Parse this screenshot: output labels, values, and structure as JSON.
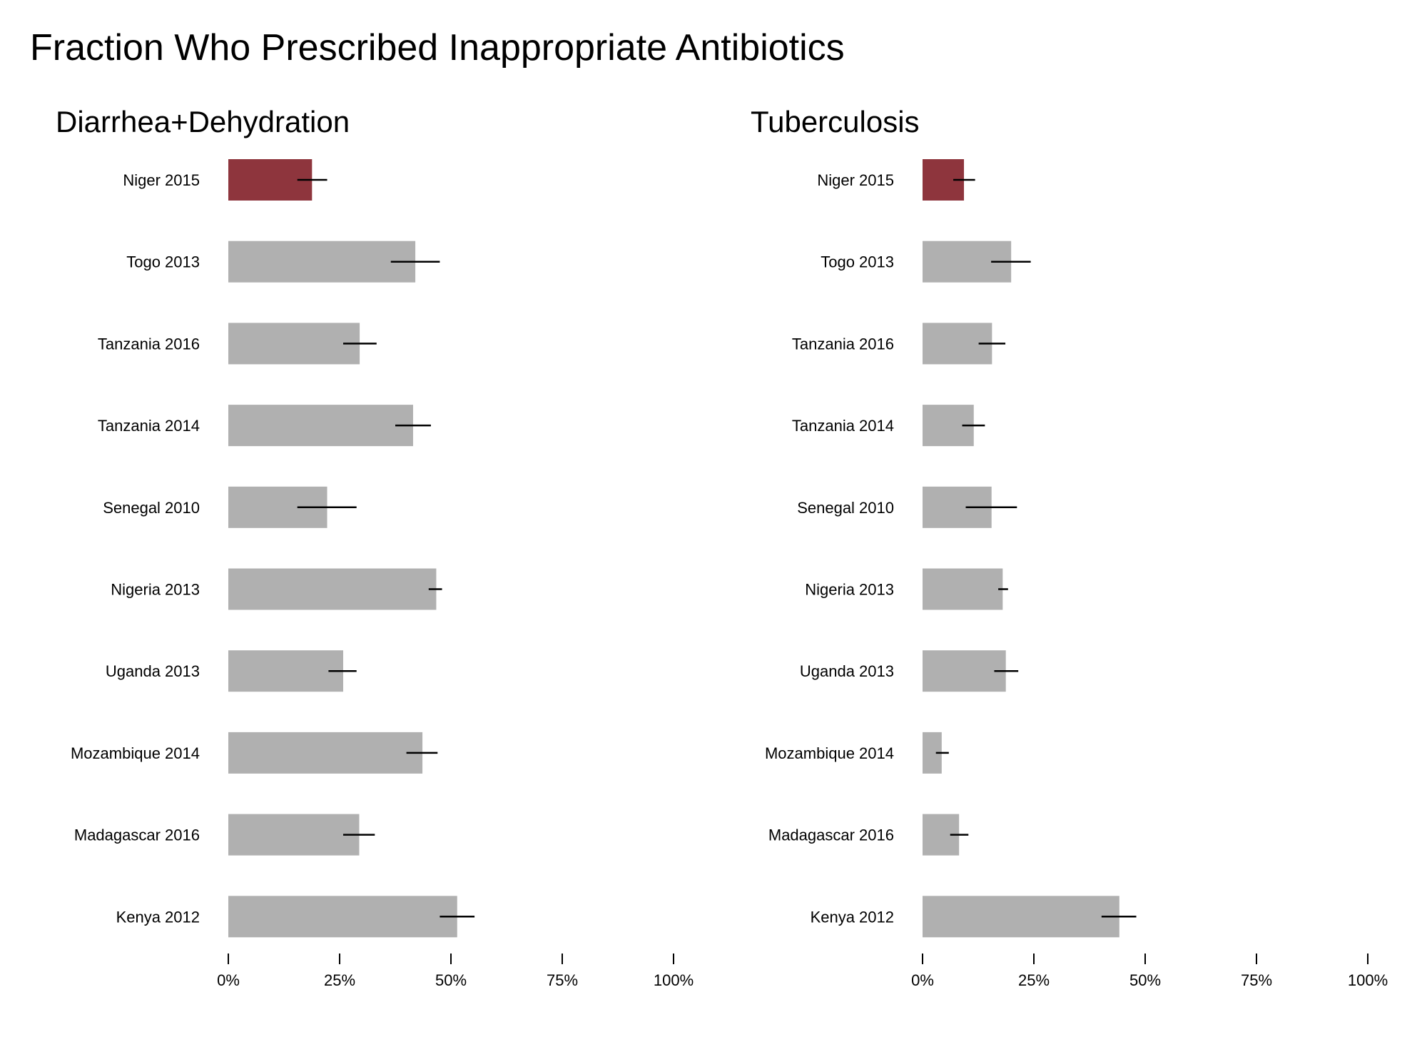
{
  "title": "Fraction Who Prescribed Inappropriate Antibiotics",
  "colors": {
    "highlight": "#8e353d",
    "bar": "#b0b0b0",
    "errorbar": "#000000",
    "text": "#000000"
  },
  "x_ticks": [
    "0%",
    "25%",
    "50%",
    "75%",
    "100%"
  ],
  "chart_data": [
    {
      "type": "bar",
      "orientation": "horizontal",
      "title": "Diarrhea+Dehydration",
      "xlim": [
        0,
        100
      ],
      "tick_values": [
        0,
        25,
        50,
        75,
        100
      ],
      "highlight_category": "Niger 2015",
      "categories": [
        "Niger 2015",
        "Togo 2013",
        "Tanzania 2016",
        "Tanzania 2014",
        "Senegal 2010",
        "Nigeria 2013",
        "Uganda 2013",
        "Mozambique 2014",
        "Madagascar 2016",
        "Kenya 2012"
      ],
      "values": [
        18.8,
        42.0,
        29.5,
        41.5,
        22.2,
        46.7,
        25.8,
        43.6,
        29.4,
        51.4
      ],
      "ci_low": [
        15.5,
        36.5,
        25.8,
        37.5,
        15.5,
        45.0,
        22.5,
        40.0,
        25.8,
        47.5
      ],
      "ci_high": [
        22.2,
        47.5,
        33.3,
        45.5,
        28.8,
        48.0,
        28.8,
        47.0,
        32.9,
        55.3
      ]
    },
    {
      "type": "bar",
      "orientation": "horizontal",
      "title": "Tuberculosis",
      "xlim": [
        0,
        100
      ],
      "tick_values": [
        0,
        25,
        50,
        75,
        100
      ],
      "highlight_category": "Niger 2015",
      "categories": [
        "Niger 2015",
        "Togo 2013",
        "Tanzania 2016",
        "Tanzania 2014",
        "Senegal 2010",
        "Nigeria 2013",
        "Uganda 2013",
        "Mozambique 2014",
        "Madagascar 2016",
        "Kenya 2012"
      ],
      "values": [
        9.3,
        19.9,
        15.6,
        11.5,
        15.5,
        18.0,
        18.7,
        4.3,
        8.2,
        44.2
      ],
      "ci_low": [
        6.9,
        15.4,
        12.6,
        8.9,
        9.7,
        17.0,
        16.1,
        3.0,
        6.2,
        40.2
      ],
      "ci_high": [
        11.8,
        24.3,
        18.6,
        14.0,
        21.2,
        19.2,
        21.5,
        5.9,
        10.3,
        48.0
      ]
    }
  ]
}
